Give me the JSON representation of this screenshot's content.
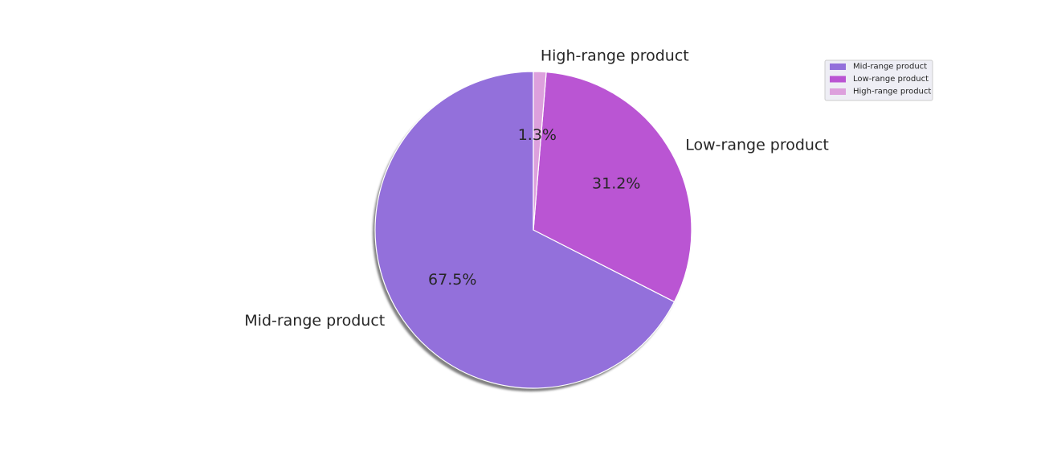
{
  "chart_data": {
    "type": "pie",
    "categories": [
      "Mid-range product",
      "Low-range product",
      "High-range product"
    ],
    "values": [
      67.5,
      31.2,
      1.3
    ],
    "percent_labels": [
      "67.5%",
      "31.2%",
      "1.3%"
    ],
    "colors": [
      "#9370db",
      "#ba55d3",
      "#dda0dd"
    ],
    "start_angle_deg": 90,
    "direction": "counterclockwise",
    "shadow": true,
    "legend": {
      "position": "top-right",
      "entries": [
        "Mid-range product",
        "Low-range product",
        "High-range product"
      ]
    }
  }
}
